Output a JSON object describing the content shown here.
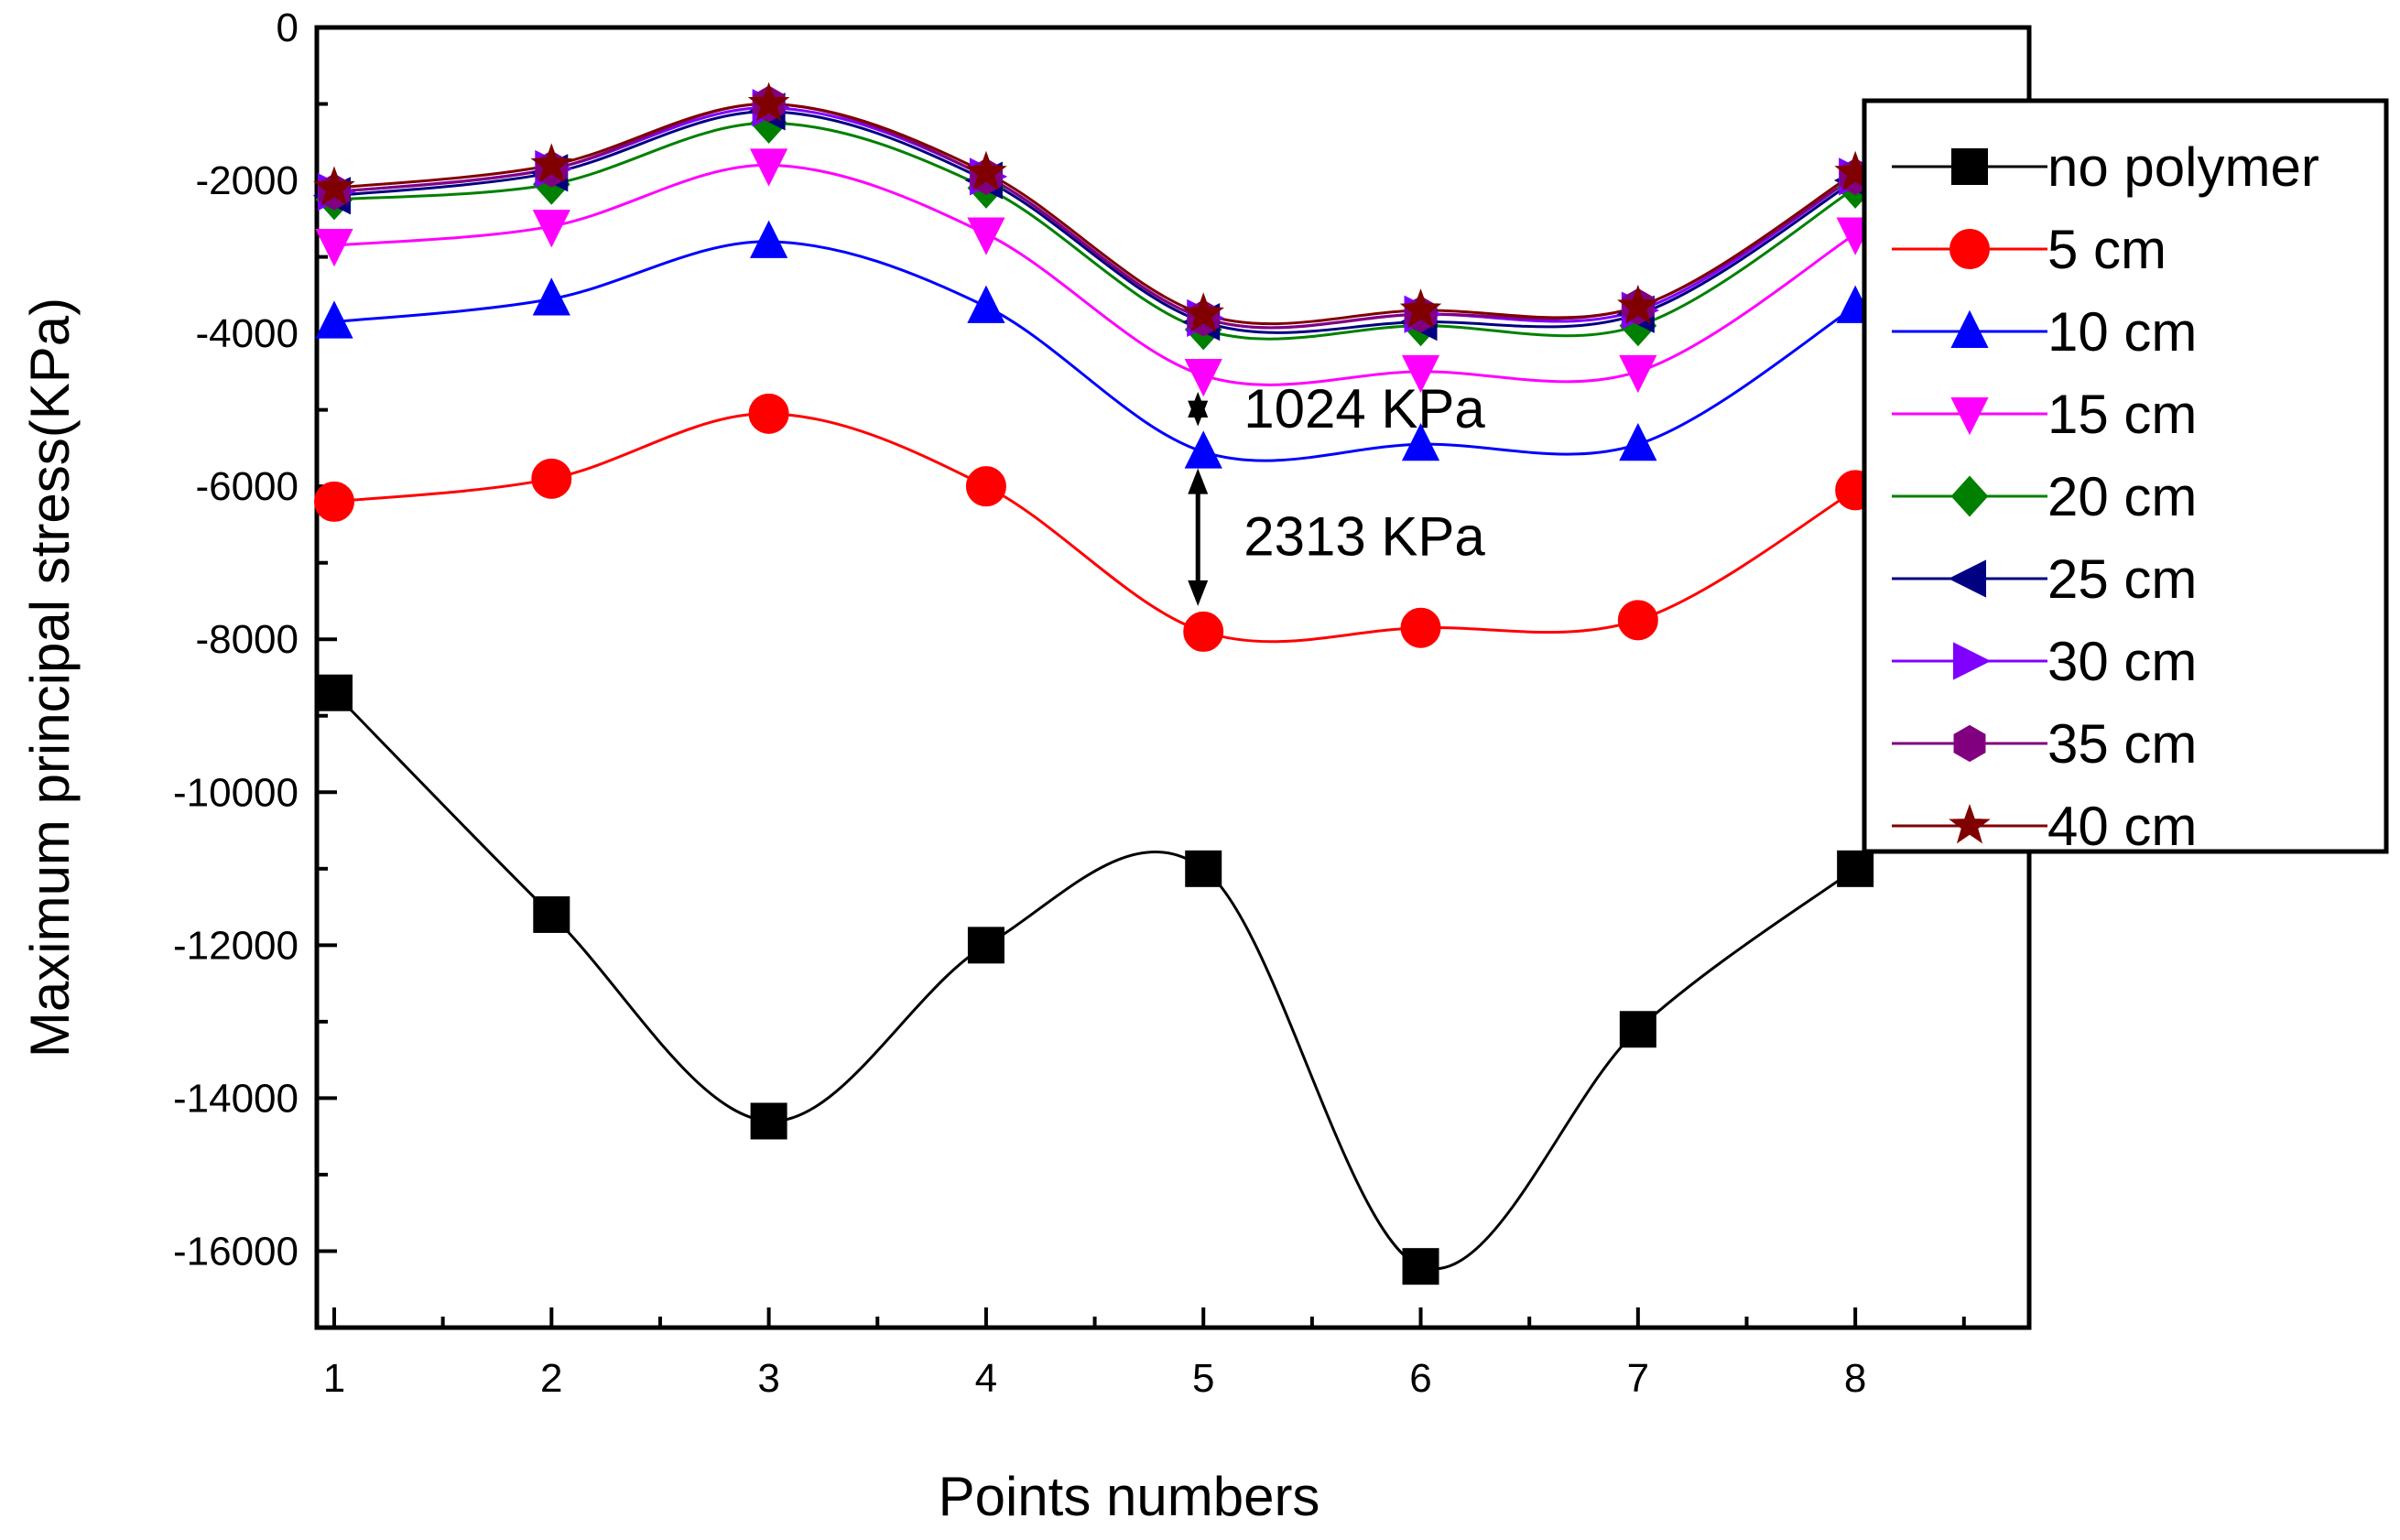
{
  "chart_data": {
    "type": "line",
    "title": "",
    "xlabel": "Points numbers",
    "ylabel": "Maximum principal stress(KPa)",
    "x": [
      1,
      2,
      3,
      4,
      5,
      6,
      7,
      8
    ],
    "x_ticks": [
      "1",
      "2",
      "3",
      "4",
      "5",
      "6",
      "7",
      "8"
    ],
    "xlim": [
      0.92,
      8.8
    ],
    "ylim": [
      -17000,
      0
    ],
    "y_ticks": [
      "0",
      "-2000",
      "-4000",
      "-6000",
      "-8000",
      "-10000",
      "-12000",
      "-14000",
      "-16000"
    ],
    "y_tick_values": [
      0,
      -2000,
      -4000,
      -6000,
      -8000,
      -10000,
      -12000,
      -14000,
      -16000
    ],
    "legend_position": "top-right",
    "grid": false,
    "series": [
      {
        "name": "no polymer",
        "color": "#000000",
        "marker": "square",
        "values": [
          -8700,
          -11600,
          -14300,
          -12000,
          -11000,
          -16200,
          -13100,
          -11000
        ]
      },
      {
        "name": "5 cm",
        "color": "#ff0000",
        "marker": "circle",
        "values": [
          -6200,
          -5900,
          -5050,
          -6000,
          -7900,
          -7850,
          -7750,
          -6050
        ]
      },
      {
        "name": "10 cm",
        "color": "#0000ff",
        "marker": "triangle-up",
        "values": [
          -3850,
          -3550,
          -2800,
          -3650,
          -5550,
          -5450,
          -5450,
          -3650
        ]
      },
      {
        "name": "15 cm",
        "color": "#ff00ff",
        "marker": "triangle-down",
        "values": [
          -2850,
          -2600,
          -1800,
          -2700,
          -4550,
          -4500,
          -4500,
          -2700
        ]
      },
      {
        "name": "20 cm",
        "color": "#008000",
        "marker": "diamond",
        "values": [
          -2250,
          -2050,
          -1250,
          -2100,
          -3950,
          -3900,
          -3900,
          -2100
        ]
      },
      {
        "name": "25 cm",
        "color": "#000080",
        "marker": "triangle-left",
        "values": [
          -2200,
          -1900,
          -1100,
          -2000,
          -3850,
          -3850,
          -3750,
          -2000
        ]
      },
      {
        "name": "30 cm",
        "color": "#8000ff",
        "marker": "triangle-right",
        "values": [
          -2150,
          -1850,
          -1050,
          -1950,
          -3800,
          -3750,
          -3700,
          -1950
        ]
      },
      {
        "name": "35 cm",
        "color": "#800080",
        "marker": "hexagon",
        "values": [
          -2150,
          -1850,
          -1000,
          -1950,
          -3800,
          -3750,
          -3650,
          -1950
        ]
      },
      {
        "name": "40 cm",
        "color": "#800000",
        "marker": "star",
        "values": [
          -2100,
          -1800,
          -1000,
          -1900,
          -3750,
          -3700,
          -3650,
          -1900
        ]
      }
    ],
    "annotations": [
      {
        "text": "1024 KPa",
        "x": 5,
        "from": -4550,
        "to": -5550
      },
      {
        "text": "2313 KPa",
        "x": 5,
        "from": -5550,
        "to": -7900
      }
    ]
  }
}
